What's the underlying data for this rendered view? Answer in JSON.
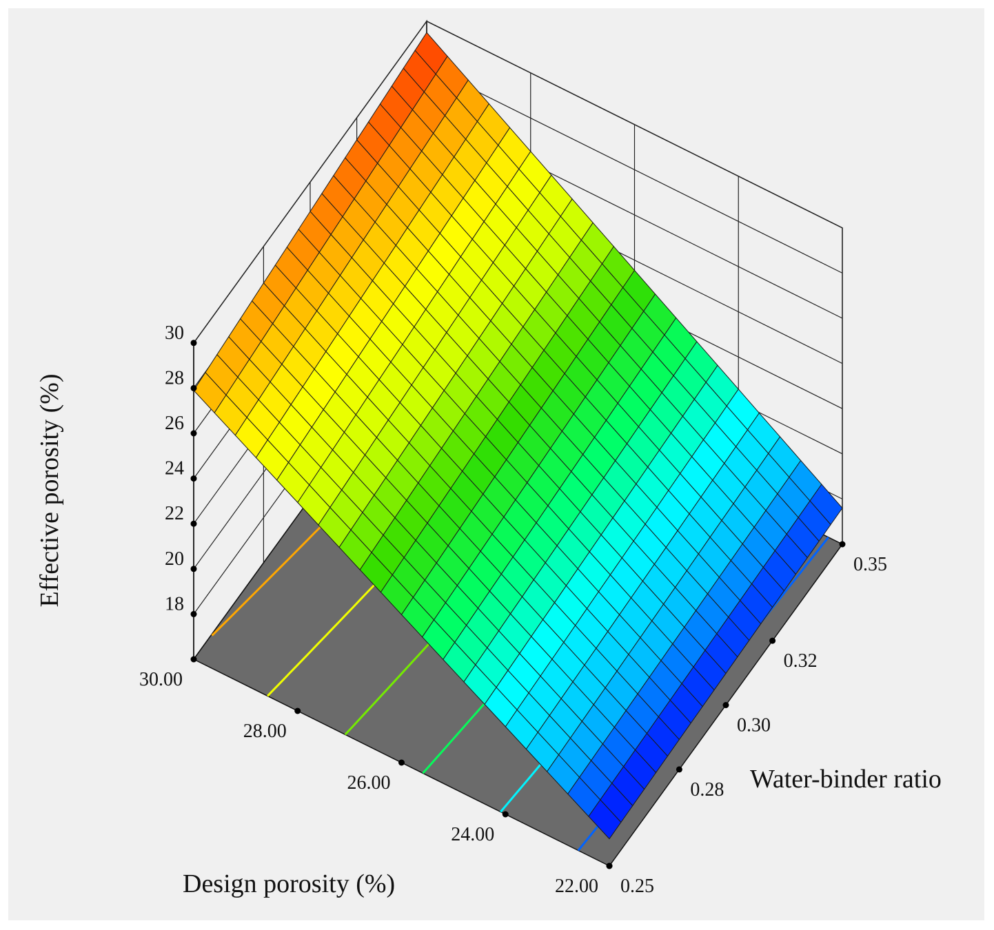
{
  "chart_data": {
    "type": "surface",
    "x_axis": {
      "label": "Design porosity (%)",
      "range": [
        22,
        30
      ],
      "ticks": [
        22,
        24,
        26,
        28,
        30
      ],
      "tick_labels": [
        "22.00",
        "24.00",
        "26.00",
        "28.00",
        "30.00"
      ]
    },
    "y_axis": {
      "label": "Water-binder ratio",
      "range": [
        0.25,
        0.35
      ],
      "ticks": [
        0.25,
        0.28,
        0.3,
        0.32,
        0.35
      ],
      "tick_labels": [
        "0.25",
        "0.28",
        "0.30",
        "0.32",
        "0.35"
      ]
    },
    "z_axis": {
      "label": "Effective porosity (%)",
      "range": [
        16,
        30
      ],
      "ticks": [
        18,
        20,
        22,
        24,
        26,
        28,
        30
      ],
      "tick_labels": [
        "18",
        "20",
        "22",
        "24",
        "26",
        "28",
        "30"
      ]
    },
    "surface_corners": [
      {
        "design_porosity": 30,
        "water_binder_ratio": 0.25,
        "effective_porosity": 27.9
      },
      {
        "design_porosity": 30,
        "water_binder_ratio": 0.35,
        "effective_porosity": 29.5
      },
      {
        "design_porosity": 22,
        "water_binder_ratio": 0.25,
        "effective_porosity": 17.2
      },
      {
        "design_porosity": 22,
        "water_binder_ratio": 0.35,
        "effective_porosity": 17.6
      }
    ],
    "colormap": [
      "#0000ff",
      "#00bfff",
      "#00ffff",
      "#00ff66",
      "#33dd00",
      "#ccff00",
      "#ffff00",
      "#ffaa00",
      "#ff3300"
    ],
    "floor_color": "#6b6b6b",
    "background": "#f0f0f0"
  }
}
